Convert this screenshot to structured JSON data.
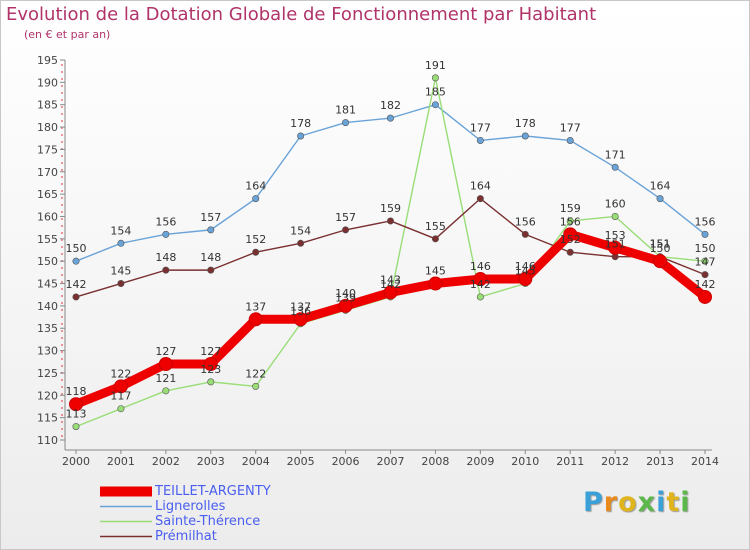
{
  "title": "Evolution de la Dotation Globale de Fonctionnement par Habitant",
  "subtitle": "(en € et par an)",
  "logo": {
    "text": "Proxiti",
    "colors": [
      "#3aa0d8",
      "#e98a1c",
      "#e0b41c",
      "#5cb84a",
      "#3aa0d8",
      "#e0b41c",
      "#5cb84a"
    ]
  },
  "chart_data": {
    "type": "line",
    "x": [
      "2000",
      "2001",
      "2002",
      "2003",
      "2004",
      "2005",
      "2006",
      "2007",
      "2008",
      "2009",
      "2010",
      "2011",
      "2012",
      "2013",
      "2014"
    ],
    "ylim": [
      110,
      195
    ],
    "yticks": [
      110,
      115,
      120,
      125,
      130,
      135,
      140,
      145,
      150,
      155,
      160,
      165,
      170,
      175,
      180,
      185,
      190,
      195
    ],
    "grid": false,
    "legend": "bottom-left",
    "series": [
      {
        "name": "TEILLET-ARGENTY",
        "color": "#ee0000",
        "values": [
          118,
          122,
          127,
          127,
          137,
          137,
          140,
          143,
          145,
          146,
          146,
          156,
          153,
          150,
          142
        ]
      },
      {
        "name": "Lignerolles",
        "color": "#6aa3d8",
        "values": [
          150,
          154,
          156,
          157,
          164,
          178,
          181,
          182,
          185,
          177,
          178,
          177,
          171,
          164,
          156
        ]
      },
      {
        "name": "Sainte-Thérence",
        "color": "#99dd77",
        "values": [
          113,
          117,
          121,
          123,
          122,
          136,
          139,
          142,
          191,
          142,
          145,
          159,
          160,
          151,
          150
        ]
      },
      {
        "name": "Prémilhat",
        "color": "#7a3030",
        "values": [
          142,
          145,
          148,
          148,
          152,
          154,
          157,
          159,
          155,
          164,
          156,
          152,
          151,
          151,
          147
        ]
      }
    ]
  }
}
